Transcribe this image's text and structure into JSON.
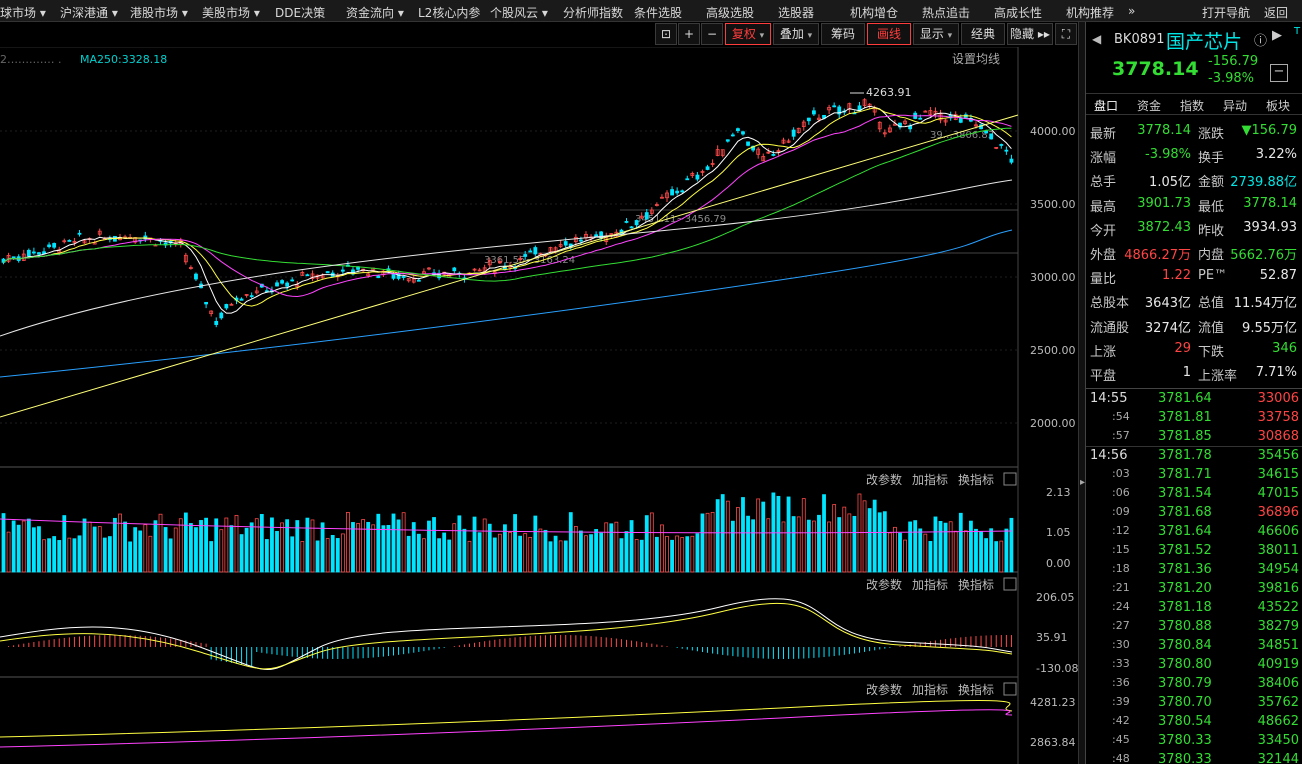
{
  "menu": [
    {
      "label": "球市场",
      "caret": true
    },
    {
      "label": "沪深港通",
      "caret": true
    },
    {
      "label": "港股市场",
      "caret": true
    },
    {
      "label": "美股市场",
      "caret": true
    },
    {
      "label": "DDE决策",
      "caret": false
    },
    {
      "label": "资金流向",
      "caret": true
    },
    {
      "label": "L2核心内参",
      "caret": false
    },
    {
      "label": "个股风云",
      "caret": true
    },
    {
      "label": "分析师指数",
      "caret": false
    },
    {
      "label": "条件选股",
      "caret": false
    },
    {
      "label": "高级选股",
      "caret": false
    },
    {
      "label": "选股器",
      "caret": false
    },
    {
      "label": "机构增仓",
      "caret": false
    },
    {
      "label": "热点追击",
      "caret": false
    },
    {
      "label": "高成长性",
      "caret": false
    },
    {
      "label": "机构推荐",
      "caret": false
    },
    {
      "label": "»",
      "caret": false
    },
    {
      "label": "打开导航",
      "caret": false
    },
    {
      "label": "返回",
      "caret": false
    }
  ],
  "toolbar": {
    "fuquan": "复权",
    "diejia": "叠加",
    "chouma": "筹码",
    "huaxian": "画线",
    "xianshi": "显示",
    "jingdian": "经典",
    "yincang": "隐藏"
  },
  "main": {
    "legend_blur": "2…….…… .",
    "ma250": "MA250:3328.18",
    "setting": "设置均线",
    "peak": "4263.91",
    "mark1": "3451.11~3456.79",
    "mark2": "3361.55~3163.24",
    "mark3": "39…3806.83",
    "yticks": [
      "4000.00",
      "3500.00",
      "3000.00",
      "2500.00",
      "2000.00"
    ]
  },
  "panels": {
    "btn_param": "改参数",
    "btn_add": "加指标",
    "btn_switch": "换指标",
    "vol_ticks": [
      "2.13",
      "1.05",
      "0.00"
    ],
    "macd_ticks": [
      "206.05",
      "35.91",
      "-130.08"
    ],
    "p3_ticks": [
      "4281.23",
      "2863.84"
    ]
  },
  "quote": {
    "code": "BK0891",
    "name": "国产芯片",
    "price": "3778.14",
    "change": "-156.79",
    "pct": "-3.98%",
    "tabs": [
      "盘口",
      "资金",
      "指数",
      "异动",
      "板块"
    ],
    "rows": [
      [
        {
          "l": "最新",
          "v": "3778.14",
          "c": "g"
        },
        {
          "l": "涨跌",
          "v": "▼156.79",
          "c": "g"
        }
      ],
      [
        {
          "l": "涨幅",
          "v": "-3.98%",
          "c": "g"
        },
        {
          "l": "换手",
          "v": "3.22%",
          "c": "w"
        }
      ],
      [
        {
          "l": "总手",
          "v": "1.05亿",
          "c": "w"
        },
        {
          "l": "金额",
          "v": "2739.88亿",
          "c": "c"
        }
      ],
      [
        {
          "l": "最高",
          "v": "3901.73",
          "c": "g"
        },
        {
          "l": "最低",
          "v": "3778.14",
          "c": "g"
        }
      ],
      [
        {
          "l": "今开",
          "v": "3872.43",
          "c": "g"
        },
        {
          "l": "昨收",
          "v": "3934.93",
          "c": "w"
        }
      ],
      [
        {
          "l": "外盘",
          "v": "4866.27万",
          "c": "r"
        },
        {
          "l": "内盘",
          "v": "5662.76万",
          "c": "g"
        }
      ],
      [
        {
          "l": "量比",
          "v": "1.22",
          "c": "r"
        },
        {
          "l": "PE™",
          "v": "52.87",
          "c": "w"
        }
      ],
      [
        {
          "l": "总股本",
          "v": "3643亿",
          "c": "w"
        },
        {
          "l": "总值",
          "v": "11.54万亿",
          "c": "w"
        }
      ],
      [
        {
          "l": "流通股",
          "v": "3274亿",
          "c": "w"
        },
        {
          "l": "流值",
          "v": "9.55万亿",
          "c": "w"
        }
      ],
      [
        {
          "l": "上涨",
          "v": "29",
          "c": "r"
        },
        {
          "l": "下跌",
          "v": "346",
          "c": "g"
        }
      ],
      [
        {
          "l": "平盘",
          "v": "1",
          "c": "w"
        },
        {
          "l": "上涨率",
          "v": "7.71%",
          "c": "w"
        }
      ]
    ],
    "ticks": [
      {
        "t": "14:55",
        "p": "3781.64",
        "v": "33006",
        "vc": "r"
      },
      {
        "t": ":54",
        "p": "3781.81",
        "v": "33758",
        "vc": "r"
      },
      {
        "t": ":57",
        "p": "3781.85",
        "v": "30868",
        "vc": "r"
      },
      {
        "t": "14:56",
        "p": "3781.78",
        "v": "35456",
        "vc": "g"
      },
      {
        "t": ":03",
        "p": "3781.71",
        "v": "34615",
        "vc": "g"
      },
      {
        "t": ":06",
        "p": "3781.54",
        "v": "47015",
        "vc": "g"
      },
      {
        "t": ":09",
        "p": "3781.68",
        "v": "36896",
        "vc": "r"
      },
      {
        "t": ":12",
        "p": "3781.64",
        "v": "46606",
        "vc": "g"
      },
      {
        "t": ":15",
        "p": "3781.52",
        "v": "38011",
        "vc": "g"
      },
      {
        "t": ":18",
        "p": "3781.36",
        "v": "34954",
        "vc": "g"
      },
      {
        "t": ":21",
        "p": "3781.20",
        "v": "39816",
        "vc": "g"
      },
      {
        "t": ":24",
        "p": "3781.18",
        "v": "43522",
        "vc": "g"
      },
      {
        "t": ":27",
        "p": "3780.88",
        "v": "38279",
        "vc": "g"
      },
      {
        "t": ":30",
        "p": "3780.84",
        "v": "34851",
        "vc": "g"
      },
      {
        "t": ":33",
        "p": "3780.80",
        "v": "40919",
        "vc": "g"
      },
      {
        "t": ":36",
        "p": "3780.79",
        "v": "38406",
        "vc": "g"
      },
      {
        "t": ":39",
        "p": "3780.70",
        "v": "35762",
        "vc": "g"
      },
      {
        "t": ":42",
        "p": "3780.54",
        "v": "48662",
        "vc": "g"
      },
      {
        "t": ":45",
        "p": "3780.33",
        "v": "33450",
        "vc": "g"
      },
      {
        "t": ":48",
        "p": "3780.33",
        "v": "32144",
        "vc": "g"
      }
    ]
  }
}
